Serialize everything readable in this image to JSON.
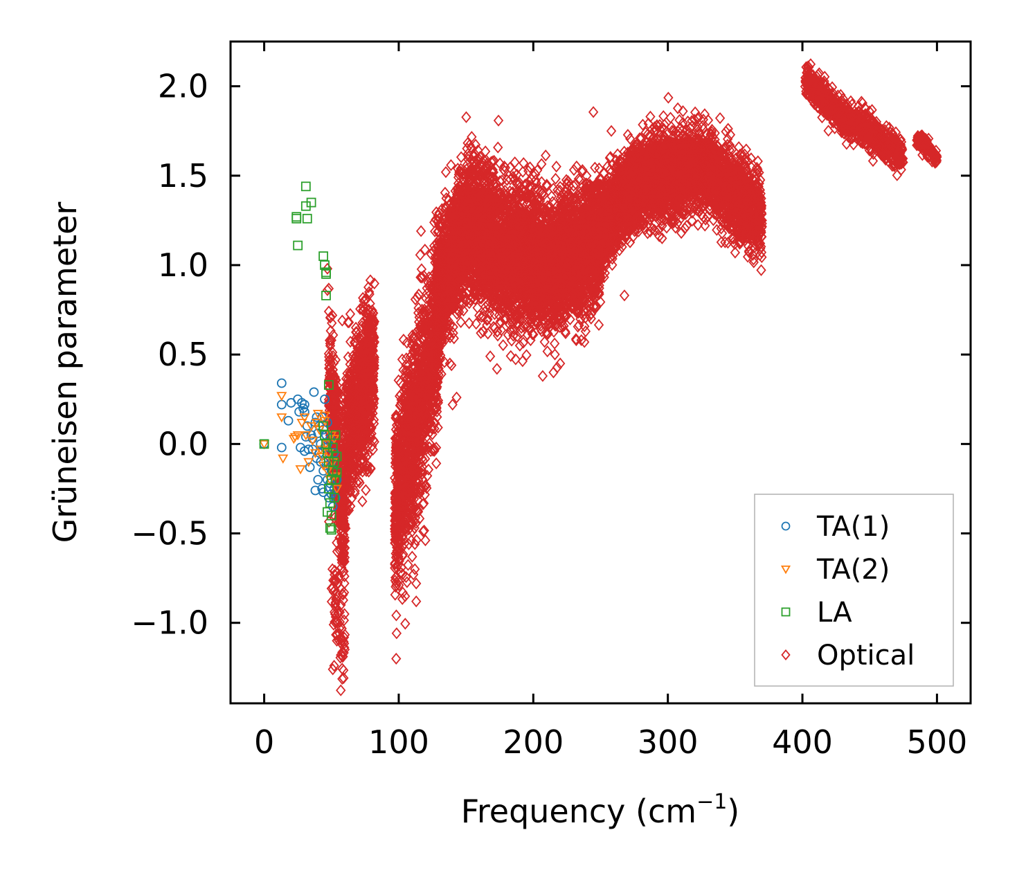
{
  "chart_data": {
    "type": "scatter",
    "title": "",
    "xlabel": "Frequency (cm",
    "xlabel_sup": "−1",
    "xlabel_close": ")",
    "ylabel": "Grüneisen parameter",
    "xlim": [
      -25,
      525
    ],
    "ylim": [
      -1.45,
      2.25
    ],
    "xticks": [
      0,
      100,
      200,
      300,
      400,
      500
    ],
    "xtick_labels": [
      "0",
      "100",
      "200",
      "300",
      "400",
      "500"
    ],
    "yticks": [
      -1.0,
      -0.5,
      0.0,
      0.5,
      1.0,
      1.5,
      2.0
    ],
    "ytick_labels": [
      "−1.0",
      "−0.5",
      "0.0",
      "0.5",
      "1.0",
      "1.5",
      "2.0"
    ],
    "grid": false,
    "legend_position": "lower-right",
    "series": [
      {
        "name": "TA(1)",
        "marker": "circle",
        "color": "#1f77b4",
        "points": [
          [
            0,
            0.0
          ],
          [
            13,
            0.34
          ],
          [
            13,
            0.22
          ],
          [
            13,
            -0.02
          ],
          [
            18,
            0.13
          ],
          [
            20,
            0.23
          ],
          [
            25,
            0.25
          ],
          [
            26,
            0.18
          ],
          [
            27,
            -0.02
          ],
          [
            28,
            0.23
          ],
          [
            29,
            0.2
          ],
          [
            30,
            0.18
          ],
          [
            30,
            -0.04
          ],
          [
            31,
            0.04
          ],
          [
            32,
            0.1
          ],
          [
            33,
            -0.03
          ],
          [
            34,
            -0.13
          ],
          [
            35,
            0.05
          ],
          [
            36,
            0.03
          ],
          [
            37,
            0.29
          ],
          [
            38,
            0.12
          ],
          [
            38,
            -0.26
          ],
          [
            39,
            0.15
          ],
          [
            40,
            0.06
          ],
          [
            40,
            -0.2
          ],
          [
            41,
            0.1
          ],
          [
            41,
            -0.05
          ],
          [
            42,
            0.0
          ],
          [
            42,
            -0.1
          ],
          [
            43,
            0.15
          ],
          [
            43,
            -0.25
          ],
          [
            44,
            0.08
          ],
          [
            44,
            -0.15
          ],
          [
            45,
            0.25
          ],
          [
            45,
            -0.02
          ],
          [
            46,
            0.05
          ],
          [
            46,
            -0.12
          ],
          [
            47,
            -0.2
          ],
          [
            47,
            0.0
          ],
          [
            48,
            -0.05
          ],
          [
            48,
            -0.3
          ],
          [
            49,
            0.03
          ],
          [
            49,
            -0.22
          ],
          [
            50,
            -0.1
          ],
          [
            50,
            -0.28
          ],
          [
            51,
            -0.15
          ],
          [
            51,
            -0.35
          ],
          [
            52,
            -0.25
          ],
          [
            52,
            -0.05
          ],
          [
            53,
            -0.3
          ],
          [
            54,
            -0.2
          ],
          [
            30,
            0.22
          ],
          [
            36,
            -0.03
          ],
          [
            39,
            -0.08
          ],
          [
            44,
            -0.27
          ],
          [
            47,
            0.12
          ]
        ]
      },
      {
        "name": "TA(2)",
        "marker": "triangle-down",
        "color": "#ff7f0e",
        "points": [
          [
            0,
            0.0
          ],
          [
            13,
            0.27
          ],
          [
            13,
            0.15
          ],
          [
            14,
            -0.08
          ],
          [
            22,
            0.03
          ],
          [
            23,
            0.04
          ],
          [
            25,
            0.05
          ],
          [
            27,
            -0.14
          ],
          [
            28,
            0.12
          ],
          [
            30,
            0.15
          ],
          [
            31,
            0.05
          ],
          [
            33,
            -0.1
          ],
          [
            35,
            0.1
          ],
          [
            36,
            0.02
          ],
          [
            38,
            -0.05
          ],
          [
            40,
            0.17
          ],
          [
            41,
            0.08
          ],
          [
            42,
            -0.03
          ],
          [
            44,
            -0.12
          ],
          [
            45,
            0.13
          ],
          [
            46,
            0.0
          ],
          [
            47,
            -0.15
          ],
          [
            48,
            -0.05
          ],
          [
            49,
            -0.2
          ],
          [
            50,
            0.05
          ],
          [
            51,
            -0.1
          ],
          [
            52,
            0.03
          ],
          [
            53,
            -0.18
          ],
          [
            54,
            -0.25
          ],
          [
            45,
            0.16
          ],
          [
            43,
            -0.07
          ],
          [
            39,
            0.12
          ]
        ]
      },
      {
        "name": "LA",
        "marker": "square",
        "color": "#2ca02c",
        "points": [
          [
            0,
            0.0
          ],
          [
            24,
            1.27
          ],
          [
            24,
            1.26
          ],
          [
            25,
            1.11
          ],
          [
            31,
            1.44
          ],
          [
            31,
            1.33
          ],
          [
            32,
            1.26
          ],
          [
            35,
            1.35
          ],
          [
            44,
            1.05
          ],
          [
            45,
            1.0
          ],
          [
            46,
            0.96
          ],
          [
            46,
            0.95
          ],
          [
            46,
            0.83
          ],
          [
            48,
            0.33
          ],
          [
            44,
            0.1
          ],
          [
            45,
            0.05
          ],
          [
            46,
            0.0
          ],
          [
            47,
            -0.05
          ],
          [
            48,
            -0.1
          ],
          [
            48,
            -0.25
          ],
          [
            49,
            -0.33
          ],
          [
            49,
            -0.47
          ],
          [
            50,
            -0.4
          ],
          [
            50,
            -0.2
          ],
          [
            51,
            -0.15
          ],
          [
            51,
            -0.02
          ],
          [
            52,
            -0.1
          ],
          [
            52,
            -0.3
          ],
          [
            53,
            0.05
          ],
          [
            53,
            -0.2
          ],
          [
            54,
            -0.16
          ],
          [
            54,
            -0.07
          ],
          [
            47,
            -0.38
          ],
          [
            50,
            -0.48
          ]
        ]
      },
      {
        "name": "Optical",
        "marker": "diamond",
        "color": "#d62728",
        "clusters": [
          {
            "x": [
              48,
              60
            ],
            "center": [
              [
                48,
                0.3
              ],
              [
                52,
                0.1
              ],
              [
                56,
                -0.2
              ],
              [
                60,
                -0.5
              ]
            ],
            "spread": 0.55,
            "n": 420
          },
          {
            "x": [
              60,
              82
            ],
            "center": [
              [
                60,
                0.0
              ],
              [
                66,
                0.1
              ],
              [
                72,
                0.25
              ],
              [
                78,
                0.4
              ],
              [
                82,
                0.45
              ]
            ],
            "spread": 0.55,
            "n": 900
          },
          {
            "x": [
              50,
              60
            ],
            "center": [
              [
                50,
                -0.8
              ],
              [
                55,
                -1.0
              ],
              [
                58,
                -1.2
              ]
            ],
            "spread": 0.25,
            "n": 60
          },
          {
            "x": [
              97,
              130
            ],
            "center": [
              [
                97,
                -0.35
              ],
              [
                105,
                -0.1
              ],
              [
                112,
                0.1
              ],
              [
                120,
                0.35
              ],
              [
                128,
                0.6
              ],
              [
                130,
                0.7
              ]
            ],
            "spread": 0.7,
            "n": 1500
          },
          {
            "x": [
              128,
              200
            ],
            "center": [
              [
                128,
                0.8
              ],
              [
                140,
                1.05
              ],
              [
                150,
                1.2
              ],
              [
                165,
                1.15
              ],
              [
                180,
                1.05
              ],
              [
                200,
                1.05
              ]
            ],
            "spread": 0.5,
            "n": 3200
          },
          {
            "x": [
              200,
              250
            ],
            "center": [
              [
                200,
                1.0
              ],
              [
                215,
                1.0
              ],
              [
                230,
                1.05
              ],
              [
                250,
                1.15
              ]
            ],
            "spread": 0.45,
            "n": 2200
          },
          {
            "x": [
              250,
              310
            ],
            "center": [
              [
                250,
                1.2
              ],
              [
                260,
                1.3
              ],
              [
                275,
                1.45
              ],
              [
                290,
                1.5
              ],
              [
                310,
                1.5
              ]
            ],
            "spread": 0.3,
            "n": 2200
          },
          {
            "x": [
              310,
              370
            ],
            "center": [
              [
                310,
                1.55
              ],
              [
                325,
                1.55
              ],
              [
                340,
                1.45
              ],
              [
                355,
                1.35
              ],
              [
                370,
                1.25
              ]
            ],
            "spread": 0.3,
            "n": 1600
          },
          {
            "x": [
              402,
              475
            ],
            "center": [
              [
                402,
                2.05
              ],
              [
                420,
                1.9
              ],
              [
                435,
                1.8
              ],
              [
                450,
                1.75
              ],
              [
                465,
                1.65
              ],
              [
                475,
                1.6
              ]
            ],
            "spread": 0.12,
            "n": 900
          },
          {
            "x": [
              485,
              500
            ],
            "center": [
              [
                485,
                1.7
              ],
              [
                492,
                1.66
              ],
              [
                500,
                1.6
              ]
            ],
            "spread": 0.06,
            "n": 120
          }
        ],
        "outliers": [
          [
            51,
            -1.26
          ],
          [
            52,
            -1.24
          ],
          [
            54,
            -1.1
          ],
          [
            55,
            -0.95
          ],
          [
            57,
            -0.9
          ],
          [
            47,
            0.98
          ],
          [
            47,
            0.86
          ],
          [
            50,
            0.58
          ],
          [
            58,
            0.69
          ],
          [
            63,
            0.68
          ],
          [
            112,
            -0.56
          ],
          [
            112,
            -0.7
          ],
          [
            113,
            -0.78
          ],
          [
            113,
            -0.88
          ],
          [
            110,
            -0.63
          ],
          [
            100,
            -0.52
          ],
          [
            140,
            0.22
          ],
          [
            143,
            0.26
          ],
          [
            190,
            0.55
          ],
          [
            198,
            0.58
          ],
          [
            207,
            0.38
          ],
          [
            215,
            0.4
          ],
          [
            220,
            0.45
          ],
          [
            238,
            0.57
          ],
          [
            183,
            1.25
          ],
          [
            203,
            1.53
          ],
          [
            210,
            1.45
          ],
          [
            218,
            1.42
          ],
          [
            250,
            1.45
          ],
          [
            255,
            1.55
          ],
          [
            258,
            1.75
          ],
          [
            287,
            1.83
          ],
          [
            304,
            1.72
          ],
          [
            322,
            1.82
          ],
          [
            330,
            1.81
          ],
          [
            350,
            1.07
          ],
          [
            355,
            1.15
          ],
          [
            361,
            1.16
          ],
          [
            365,
            1.26
          ],
          [
            370,
            1.25
          ],
          [
            275,
            1.25
          ],
          [
            283,
            1.2
          ],
          [
            295,
            1.3
          ],
          [
            310,
            1.18
          ],
          [
            314,
            1.22
          ],
          [
            325,
            1.28
          ],
          [
            262,
            1.45
          ],
          [
            175,
            1.35
          ],
          [
            163,
            1.52
          ],
          [
            155,
            1.5
          ],
          [
            145,
            1.52
          ],
          [
            135,
            1.52
          ],
          [
            138,
            0.45
          ],
          [
            168,
            0.49
          ],
          [
            173,
            0.42
          ],
          [
            161,
            0.62
          ]
        ]
      }
    ]
  }
}
